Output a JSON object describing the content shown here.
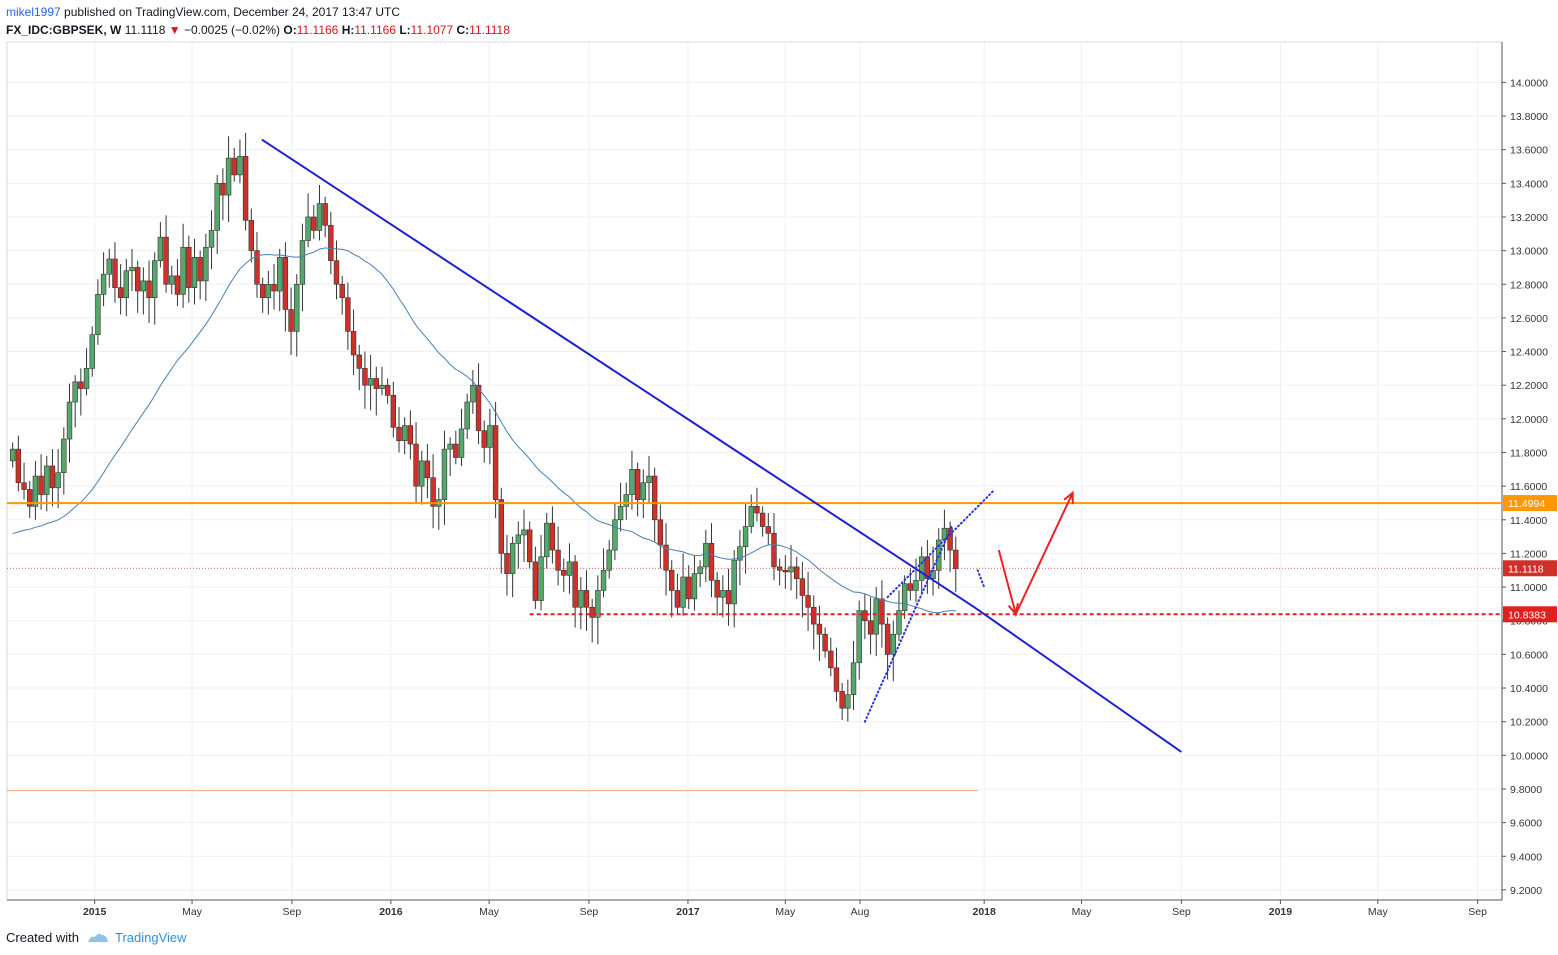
{
  "header": {
    "author": "mikel1997",
    "published_text": "published on TradingView.com, December 24, 2017 13:47 UTC"
  },
  "legend": {
    "symbol": "FX_IDC:GBPSEK, W",
    "last": "11.1118",
    "change": "−0.0025 (−0.02%)",
    "open_label": "O:",
    "open": "11.1166",
    "high_label": "H:",
    "high": "11.1166",
    "low_label": "L:",
    "low": "11.1077",
    "close_label": "C:",
    "close": "11.1118"
  },
  "footer": {
    "created_with": "Created with",
    "brand": "TradingView"
  },
  "colors": {
    "up": "#53a86a",
    "down": "#d0302a",
    "ma": "#4a7fb0",
    "trendline": "#1f1fd6",
    "resistance": "#ff9800",
    "support": "#e02020",
    "arrow": "#ee2222",
    "channel": "#2535d8"
  },
  "chart_data": {
    "type": "candlestick",
    "timeframe": "W",
    "y_axis": {
      "ylim": [
        9.14,
        14.24
      ],
      "ticks": [
        "9.2000",
        "9.4000",
        "9.6000",
        "9.8000",
        "10.0000",
        "10.2000",
        "10.4000",
        "10.6000",
        "10.8000",
        "11.0000",
        "11.2000",
        "11.4000",
        "11.6000",
        "11.8000",
        "12.0000",
        "12.2000",
        "12.4000",
        "12.6000",
        "12.8000",
        "13.0000",
        "13.2000",
        "13.4000",
        "13.6000",
        "13.8000",
        "14.0000"
      ]
    },
    "x_axis": {
      "range": [
        "2014-09-15",
        "2019-10-01"
      ],
      "ticks": [
        {
          "label": "2015",
          "date": "2015-01-01",
          "bold": true
        },
        {
          "label": "May",
          "date": "2015-05-01",
          "bold": false
        },
        {
          "label": "Sep",
          "date": "2015-09-01",
          "bold": false
        },
        {
          "label": "2016",
          "date": "2016-01-01",
          "bold": true
        },
        {
          "label": "May",
          "date": "2016-05-01",
          "bold": false
        },
        {
          "label": "Sep",
          "date": "2016-09-01",
          "bold": false
        },
        {
          "label": "2017",
          "date": "2017-01-01",
          "bold": true
        },
        {
          "label": "May",
          "date": "2017-05-01",
          "bold": false
        },
        {
          "label": "Aug",
          "date": "2017-08-01",
          "bold": false
        },
        {
          "label": "2018",
          "date": "2018-01-01",
          "bold": true
        },
        {
          "label": "May",
          "date": "2018-05-01",
          "bold": false
        },
        {
          "label": "Sep",
          "date": "2018-09-01",
          "bold": false
        },
        {
          "label": "2019",
          "date": "2019-01-01",
          "bold": true
        },
        {
          "label": "May",
          "date": "2019-05-01",
          "bold": false
        },
        {
          "label": "Sep",
          "date": "2019-09-01",
          "bold": false
        }
      ]
    },
    "price_markers": [
      {
        "value": 11.4994,
        "label": "11.4994",
        "color": "#ff9800"
      },
      {
        "value": 11.1118,
        "label": "11.1118",
        "color": "#d0302a"
      },
      {
        "value": 10.8383,
        "label": "10.8383",
        "color": "#e02020"
      }
    ],
    "closes": [
      11.82,
      11.62,
      11.58,
      11.48,
      11.66,
      11.55,
      11.72,
      11.59,
      11.68,
      11.88,
      12.1,
      12.22,
      12.18,
      12.3,
      12.5,
      12.74,
      12.86,
      12.95,
      12.78,
      12.72,
      12.88,
      12.9,
      12.76,
      12.82,
      12.72,
      12.94,
      13.08,
      12.8,
      12.85,
      12.74,
      13.02,
      12.78,
      12.96,
      12.82,
      13.02,
      13.12,
      13.4,
      13.33,
      13.55,
      13.45,
      13.56,
      13.18,
      13.0,
      12.8,
      12.72,
      12.8,
      12.76,
      12.96,
      12.65,
      12.52,
      12.8,
      13.06,
      13.2,
      13.12,
      13.28,
      13.15,
      12.94,
      12.8,
      12.72,
      12.52,
      12.38,
      12.3,
      12.2,
      12.24,
      12.18,
      12.2,
      12.14,
      11.95,
      11.87,
      11.96,
      11.85,
      11.6,
      11.75,
      11.65,
      11.48,
      11.52,
      11.82,
      11.85,
      11.77,
      11.94,
      12.1,
      12.2,
      11.93,
      11.83,
      11.96,
      11.52,
      11.2,
      11.08,
      11.26,
      11.31,
      11.34,
      11.15,
      10.92,
      11.18,
      11.38,
      11.22,
      11.1,
      11.07,
      11.15,
      10.88,
      10.98,
      10.88,
      10.82,
      10.98,
      11.1,
      11.22,
      11.4,
      11.48,
      11.55,
      11.7,
      11.52,
      11.62,
      11.66,
      11.4,
      11.25,
      11.1,
      10.98,
      10.88,
      11.06,
      10.93,
      11.08,
      11.12,
      11.26,
      11.04,
      10.94,
      10.98,
      10.9,
      11.16,
      11.24,
      11.36,
      11.48,
      11.44,
      11.36,
      11.32,
      11.12,
      11.1,
      11.09,
      11.12,
      11.05,
      10.95,
      10.88,
      10.78,
      10.72,
      10.62,
      10.52,
      10.38,
      10.28,
      10.36,
      10.55,
      10.86,
      10.8,
      10.72,
      10.93,
      10.78,
      10.6,
      10.72,
      10.86,
      11.02,
      10.98,
      11.04,
      11.18,
      11.05,
      11.1,
      11.28,
      11.35,
      11.22,
      11.11
    ],
    "trendline": [
      {
        "date": "2015-07-26",
        "value": 13.66
      },
      {
        "date": "2017-12-20",
        "value": 10.88
      },
      {
        "date": "2018-09-01",
        "value": 10.02
      }
    ],
    "resistance": {
      "value": 11.4994
    },
    "support": {
      "value": 10.8383,
      "from": "2016-06-20"
    },
    "faint_level": {
      "value": 9.79,
      "to": "2017-12-24"
    },
    "forecast": [
      {
        "date": "2018-01-19",
        "value": 11.22
      },
      {
        "date": "2018-02-09",
        "value": 10.84
      },
      {
        "date": "2018-04-20",
        "value": 11.56
      }
    ],
    "channel": {
      "lower": [
        {
          "date": "2017-08-07",
          "value": 10.2
        },
        {
          "date": "2017-11-22",
          "value": 11.36
        }
      ],
      "upper": [
        {
          "date": "2017-09-04",
          "value": 10.94
        },
        {
          "date": "2018-01-14",
          "value": 11.58
        }
      ],
      "cap": [
        {
          "date": "2017-12-24",
          "value": 11.1
        },
        {
          "date": "2018-01-01",
          "value": 11.0
        }
      ]
    }
  }
}
